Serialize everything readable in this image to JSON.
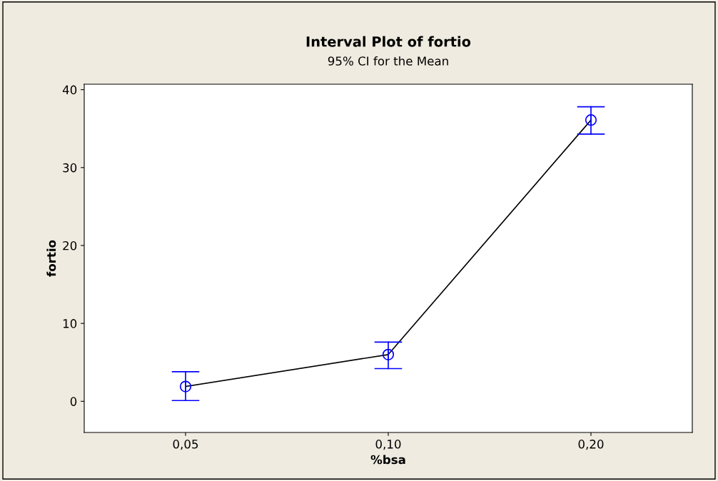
{
  "chart_data": {
    "type": "line",
    "title": "Interval Plot of fortio",
    "subtitle": "95% CI for the Mean",
    "xlabel": "%bsa",
    "ylabel": "fortio",
    "categories": [
      "0,05",
      "0,10",
      "0,20"
    ],
    "series": [
      {
        "color": "#000000",
        "values": [
          1.9,
          6.0,
          36.1
        ],
        "marker": "none"
      },
      {
        "type": "scatter",
        "color": "#0000ff",
        "values": [
          1.9,
          6.0,
          36.1
        ],
        "errors": [
          [
            0.1,
            3.8
          ],
          [
            4.2,
            7.6
          ],
          [
            34.3,
            37.8
          ]
        ],
        "marker": "circle"
      }
    ],
    "ylim": [
      -4,
      40.7
    ],
    "yticks": [
      0,
      10,
      20,
      30,
      40
    ],
    "grid": false,
    "legend": false
  }
}
